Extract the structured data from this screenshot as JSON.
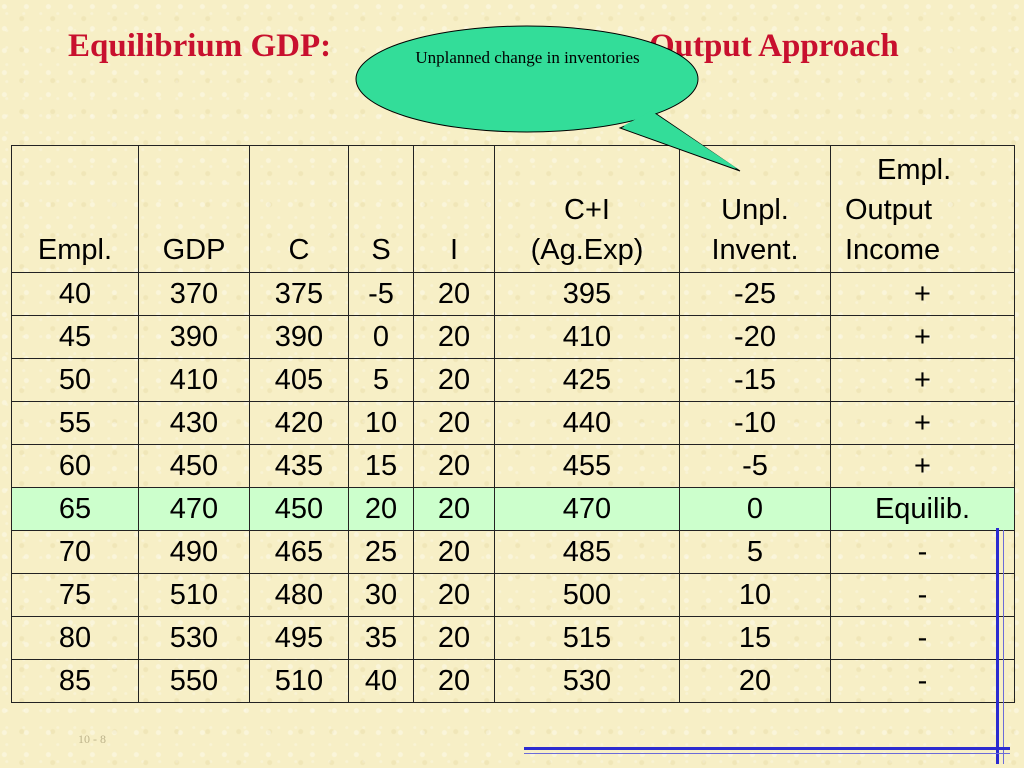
{
  "title": {
    "left": "Equilibrium GDP:",
    "right": "Output Approach"
  },
  "callout": {
    "text": "Unplanned change in inventories"
  },
  "table": {
    "headers": [
      [
        "Empl."
      ],
      [
        "GDP"
      ],
      [
        "C"
      ],
      [
        "S"
      ],
      [
        "I"
      ],
      [
        "C+I",
        "(Ag.Exp)"
      ],
      [
        "Unpl.",
        "Invent."
      ],
      [
        "Empl.",
        "Output",
        "Income"
      ]
    ],
    "rows": [
      [
        "40",
        "370",
        "375",
        "-5",
        "20",
        "395",
        "-25",
        "+"
      ],
      [
        "45",
        "390",
        "390",
        "0",
        "20",
        "410",
        "-20",
        "+"
      ],
      [
        "50",
        "410",
        "405",
        "5",
        "20",
        "425",
        "-15",
        "+"
      ],
      [
        "55",
        "430",
        "420",
        "10",
        "20",
        "440",
        "-10",
        "+"
      ],
      [
        "60",
        "450",
        "435",
        "15",
        "20",
        "455",
        "-5",
        "+"
      ],
      [
        "65",
        "470",
        "450",
        "20",
        "20",
        "470",
        "0",
        "Equilib."
      ],
      [
        "70",
        "490",
        "465",
        "25",
        "20",
        "485",
        "5",
        "-"
      ],
      [
        "75",
        "510",
        "480",
        "30",
        "20",
        "500",
        "10",
        "-"
      ],
      [
        "80",
        "530",
        "495",
        "35",
        "20",
        "515",
        "15",
        "-"
      ],
      [
        "85",
        "550",
        "510",
        "40",
        "20",
        "530",
        "20",
        "-"
      ]
    ],
    "highlight_row": 5,
    "highlight_color": "#ccffcc"
  },
  "footer": {
    "slide_number": "10 - 8"
  },
  "colors": {
    "title": "#c8102e",
    "callout_fill": "#33dd99",
    "accent_lines": "#2b2bd0",
    "background": "#f7efc6"
  }
}
